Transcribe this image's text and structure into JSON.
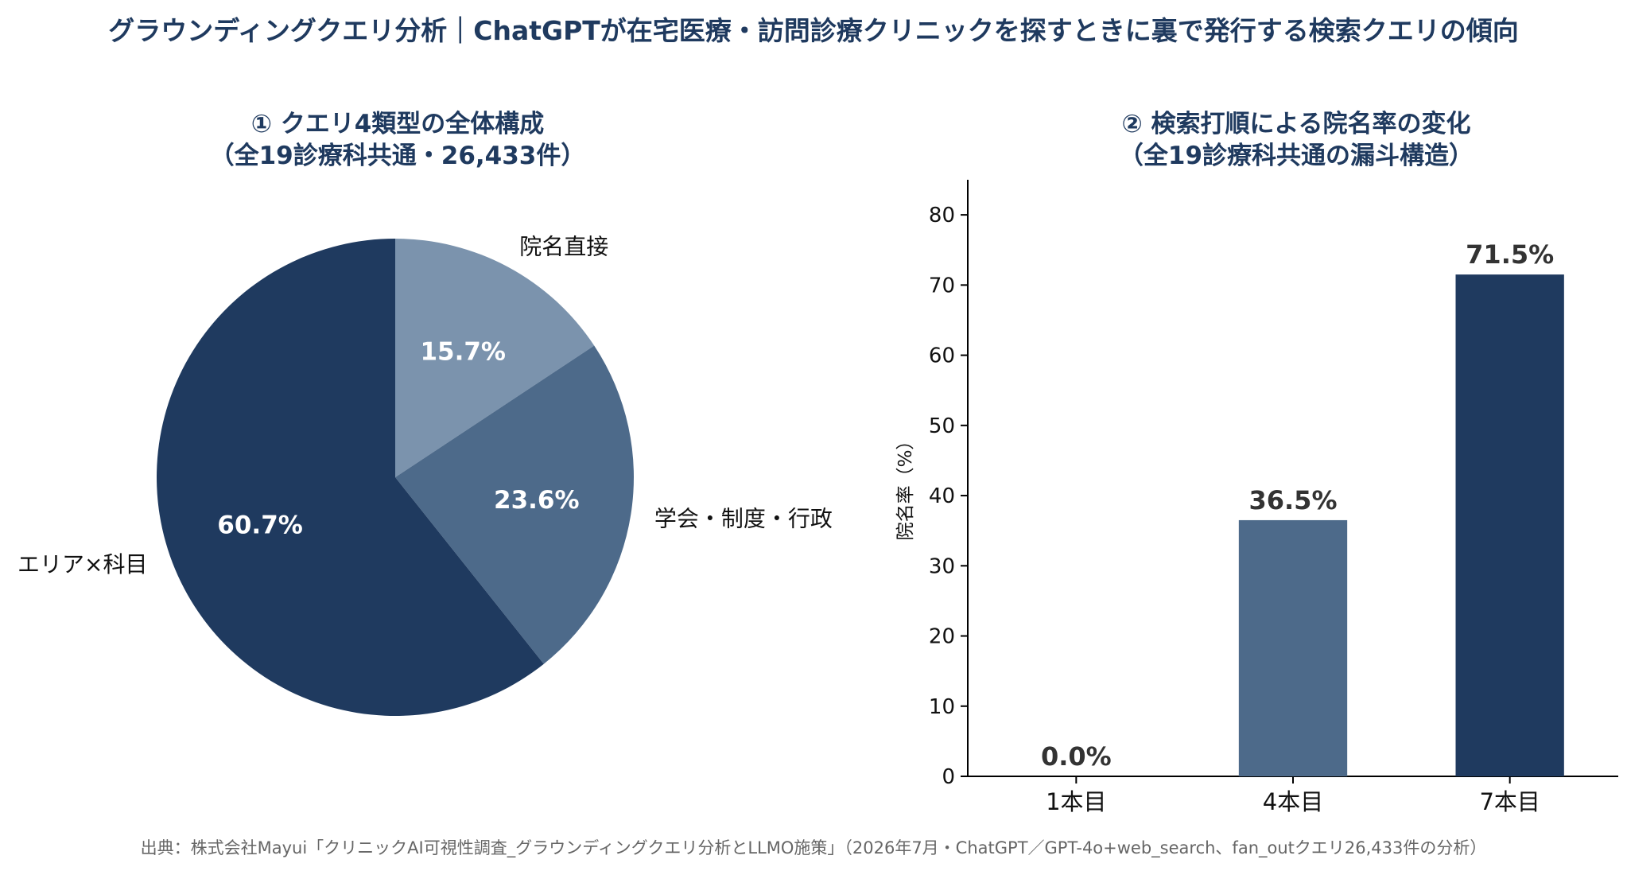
{
  "title": "グラウンディングクエリ分析｜ChatGPTが在宅医療・訪問診療クリニックを探すときに裏で発行する検索クエリの傾向",
  "footnote": "出典：株式会社Mayui「クリニックAI可視性調査_グラウンディングクエリ分析とLLMO施策」（2026年7月・ChatGPT／GPT-4o+web_search、fan_outクエリ26,433件の分析）",
  "colors": {
    "title": "#1f3a5f",
    "dark": "#1f3a5f",
    "mid": "#4d6a8a",
    "light": "#7b93ad"
  },
  "chart_data": [
    {
      "type": "pie",
      "title_line1": "① クエリ4類型の全体構成",
      "title_line2": "（全19診療科共通・26,433件）",
      "slices": [
        {
          "label": "院名直接",
          "value": 15.7,
          "value_label": "15.7%",
          "color": "#7b93ad"
        },
        {
          "label": "学会・制度・行政",
          "value": 23.6,
          "value_label": "23.6%",
          "color": "#4d6a8a"
        },
        {
          "label": "エリア×科目",
          "value": 60.7,
          "value_label": "60.7%",
          "color": "#1f3a5f"
        }
      ],
      "start": "12 o'clock",
      "direction": "clockwise"
    },
    {
      "type": "bar",
      "title_line1": "② 検索打順による院名率の変化",
      "title_line2": "（全19診療科共通の漏斗構造）",
      "categories": [
        "1本目",
        "4本目",
        "7本目"
      ],
      "values": [
        0.0,
        36.5,
        71.5
      ],
      "value_labels": [
        "0.0%",
        "36.5%",
        "71.5%"
      ],
      "bar_colors": [
        "#1f3a5f",
        "#4d6a8a",
        "#1f3a5f"
      ],
      "ylabel": "院名率（%）",
      "ylim": [
        0,
        85
      ],
      "yticks": [
        0,
        10,
        20,
        30,
        40,
        50,
        60,
        70,
        80
      ],
      "grid": false
    }
  ]
}
